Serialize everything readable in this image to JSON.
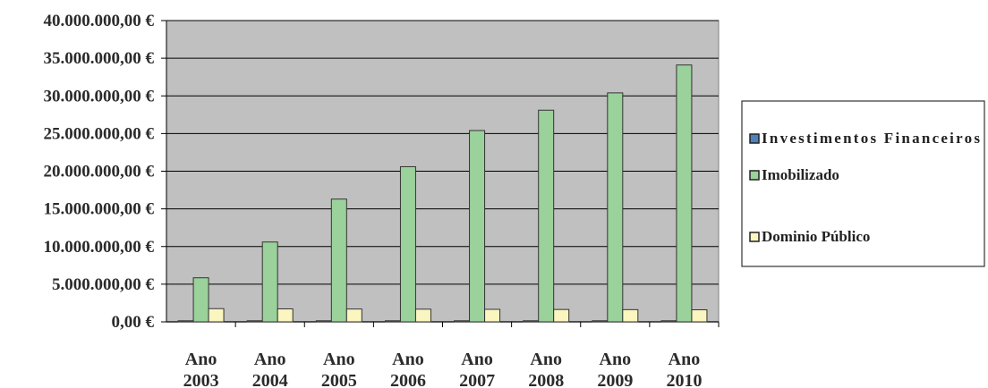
{
  "chart_data": {
    "type": "bar",
    "categories": [
      [
        "Ano",
        "2003"
      ],
      [
        "Ano",
        "2004"
      ],
      [
        "Ano",
        "2005"
      ],
      [
        "Ano",
        "2006"
      ],
      [
        "Ano",
        "2007"
      ],
      [
        "Ano",
        "2008"
      ],
      [
        "Ano",
        "2009"
      ],
      [
        "Ano",
        "2010"
      ]
    ],
    "series": [
      {
        "name": "Investimentos Financeiros",
        "color": "#4f81bd",
        "values": [
          0,
          0,
          0,
          0,
          0,
          0,
          0,
          0
        ]
      },
      {
        "name": "Imobilizado",
        "color": "#9bd19b",
        "values": [
          5850000,
          10600000,
          16300000,
          20600000,
          25400000,
          28100000,
          30400000,
          34100000
        ]
      },
      {
        "name": "Dominio Público",
        "color": "#fbf5c0",
        "values": [
          1750000,
          1720000,
          1700000,
          1680000,
          1660000,
          1640000,
          1620000,
          1600000
        ]
      }
    ],
    "y_ticks": [
      "0,00 €",
      "5.000.000,00 €",
      "10.000.000,00 €",
      "15.000.000,00 €",
      "20.000.000,00 €",
      "25.000.000,00 €",
      "30.000.000,00 €",
      "35.000.000,00 €",
      "40.000.000,00 €"
    ],
    "ylim": [
      0,
      40000000
    ],
    "y_step": 5000000,
    "grid": true,
    "plot_background": "#c0c0c0",
    "legend_position": "right"
  }
}
